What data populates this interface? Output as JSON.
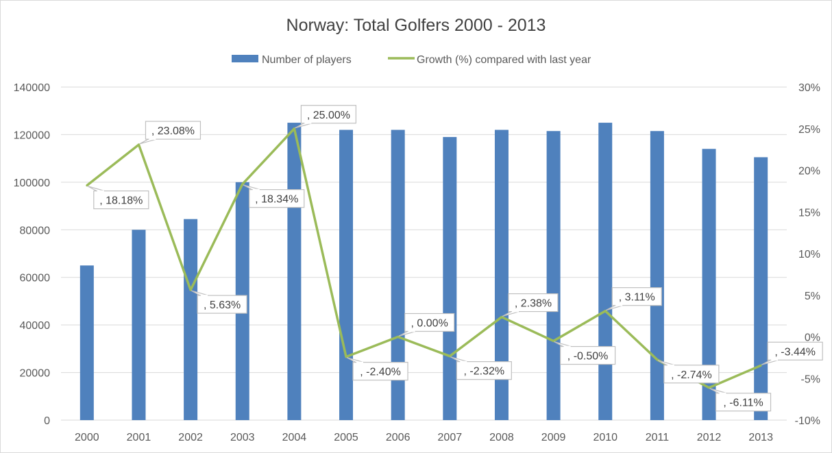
{
  "chart_data": {
    "type": "bar",
    "title": "Norway: Total Golfers 2000 - 2013",
    "categories": [
      "2000",
      "2001",
      "2002",
      "2003",
      "2004",
      "2005",
      "2006",
      "2007",
      "2008",
      "2009",
      "2010",
      "2011",
      "2012",
      "2013"
    ],
    "series": [
      {
        "name": "Number of players",
        "type": "bar",
        "axis": "left",
        "color": "#4f81bd",
        "values": [
          65000,
          80000,
          84500,
          100000,
          125000,
          122000,
          122000,
          119000,
          122000,
          121500,
          125000,
          121500,
          114000,
          110500
        ]
      },
      {
        "name": "Growth (%) compared with last year",
        "type": "line",
        "axis": "right",
        "color": "#9bbb59",
        "values": [
          18.18,
          23.08,
          5.63,
          18.34,
          25.0,
          -2.4,
          0.0,
          -2.32,
          2.38,
          -0.5,
          3.11,
          -2.74,
          -6.11,
          -3.44
        ],
        "data_labels": [
          ", 18.18%",
          ", 23.08%",
          ", 5.63%",
          ", 18.34%",
          ", 25.00%",
          ", -2.40%",
          ", 0.00%",
          ", -2.32%",
          ", 2.38%",
          ", -0.50%",
          ", 3.11%",
          ", -2.74%",
          ", -6.11%",
          ", -3.44%"
        ],
        "label_side": [
          "below",
          "above",
          "below",
          "below",
          "above",
          "below",
          "above",
          "below",
          "above",
          "below",
          "above",
          "below",
          "below",
          "above"
        ]
      }
    ],
    "y_left": {
      "min": 0,
      "max": 140000,
      "ticks": [
        0,
        20000,
        40000,
        60000,
        80000,
        100000,
        120000,
        140000
      ],
      "tick_labels": [
        "0",
        "20000",
        "40000",
        "60000",
        "80000",
        "100000",
        "120000",
        "140000"
      ]
    },
    "y_right": {
      "min": -10,
      "max": 30,
      "ticks": [
        -10,
        -5,
        0,
        5,
        10,
        15,
        20,
        25,
        30
      ],
      "tick_labels": [
        "-10%",
        "-5%",
        "0%",
        "5%",
        "10%",
        "15%",
        "20%",
        "25%",
        "30%"
      ]
    },
    "grid": true,
    "legend": "top"
  }
}
